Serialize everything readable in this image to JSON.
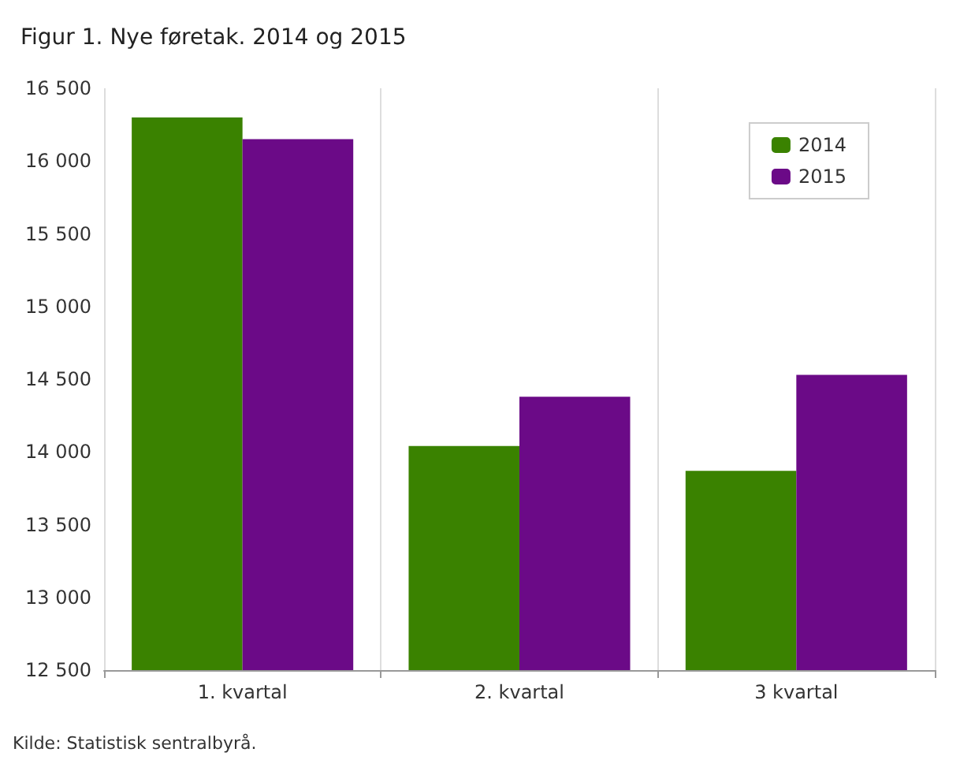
{
  "chart_data": {
    "type": "bar",
    "title": "Figur 1. Nye føretak. 2014 og 2015",
    "categories": [
      "1. kvartal",
      "2. kvartal",
      "3 kvartal"
    ],
    "series": [
      {
        "name": "2014",
        "color": "#3a8200",
        "values": [
          16300,
          14040,
          13870
        ]
      },
      {
        "name": "2015",
        "color": "#6b0a87",
        "values": [
          16150,
          14380,
          14530
        ]
      }
    ],
    "ylim": [
      12500,
      16500
    ],
    "yticks": [
      {
        "value": 12500,
        "label": "12 500"
      },
      {
        "value": 13000,
        "label": "13 000"
      },
      {
        "value": 13500,
        "label": "13 500"
      },
      {
        "value": 14000,
        "label": "14 000"
      },
      {
        "value": 14500,
        "label": "14 500"
      },
      {
        "value": 15000,
        "label": "15 000"
      },
      {
        "value": 15500,
        "label": "15 500"
      },
      {
        "value": 16000,
        "label": "16 000"
      },
      {
        "value": 16500,
        "label": "16 500"
      }
    ],
    "grid": "x",
    "legend": "top right",
    "annotations": [
      "Kilde: Statistisk sentralbyrå."
    ]
  }
}
